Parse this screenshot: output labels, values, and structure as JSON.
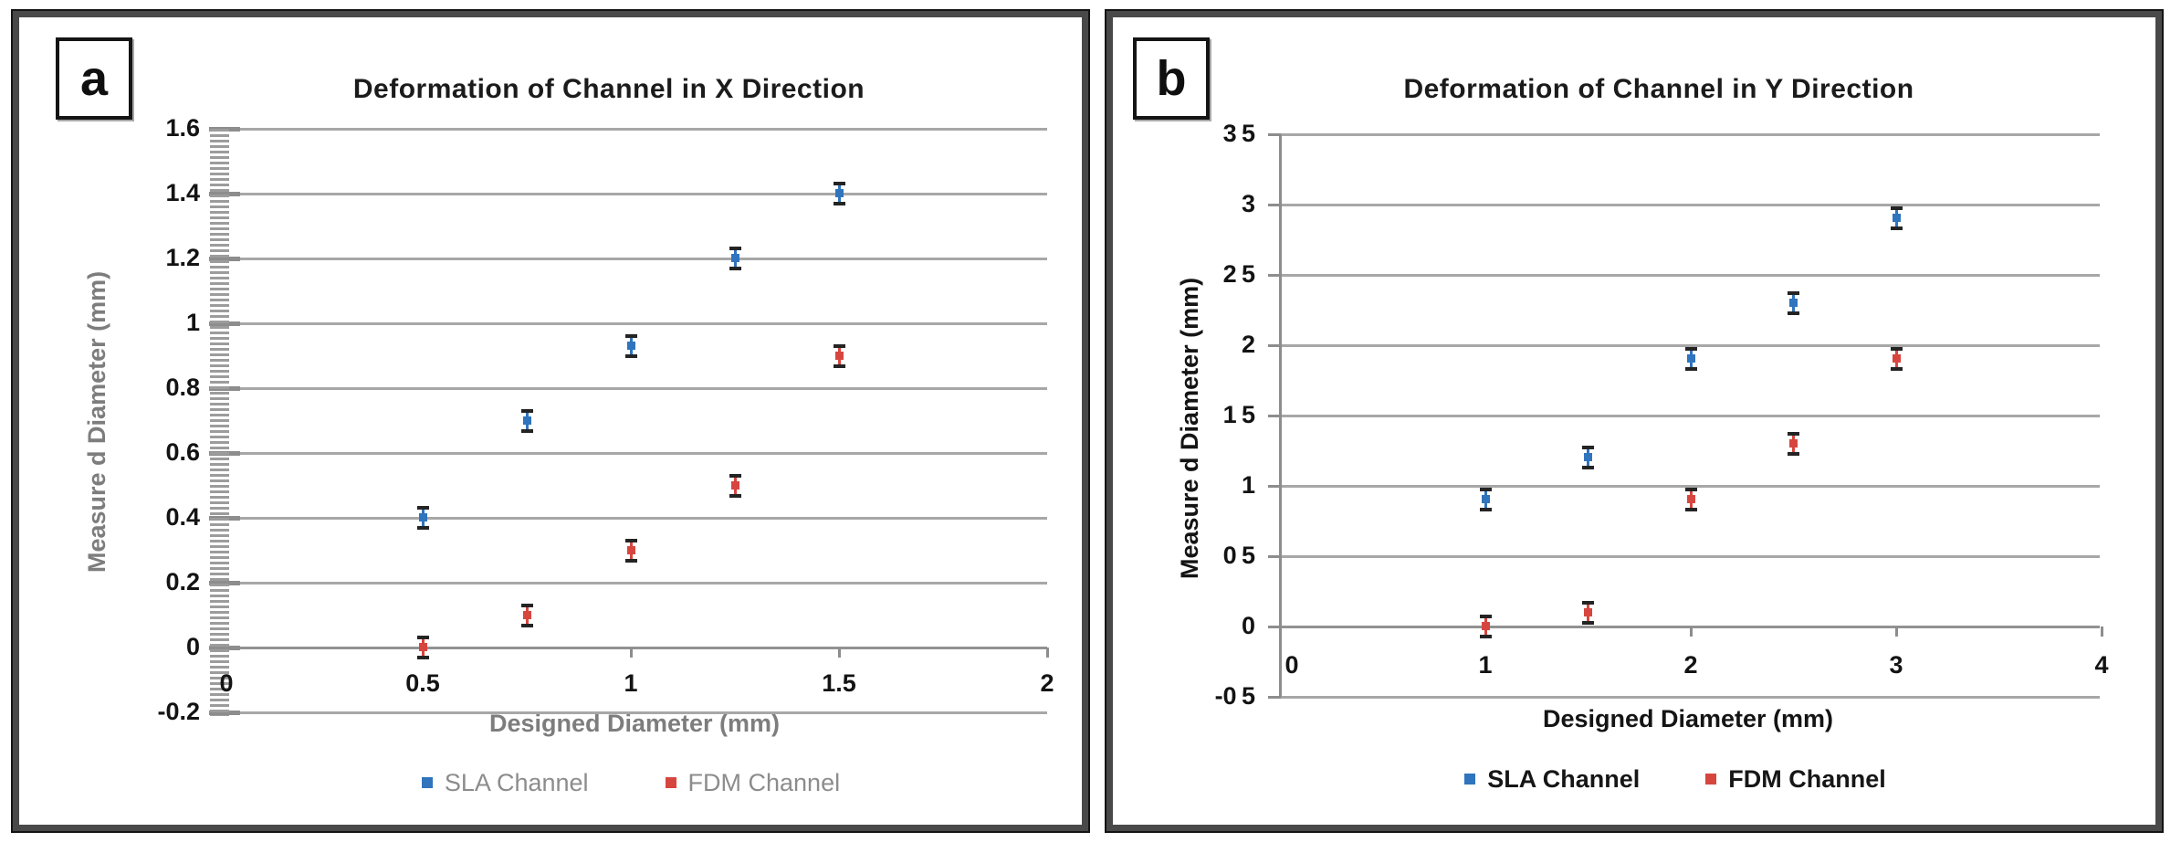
{
  "figure": {
    "background": "#ffffff",
    "panel_count": 2
  },
  "chart_data": [
    {
      "type": "scatter",
      "panel_label": "a",
      "title": "Deformation of Channel in X Direction",
      "xlabel": "Designed Diameter (mm)",
      "ylabel": "Measure d Diameter (mm)",
      "xlim": [
        0,
        2
      ],
      "ylim": [
        -0.2,
        1.6
      ],
      "x_tick_values": [
        0,
        0.5,
        1,
        1.5,
        2
      ],
      "x_tick_labels": [
        "0",
        "0.5",
        "1",
        "1.5",
        "2"
      ],
      "y_tick_values": [
        1.6,
        1.4,
        1.2,
        1.0,
        0.8,
        0.6,
        0.4,
        0.2,
        0,
        -0.2
      ],
      "y_tick_labels": [
        "1.6",
        "1.4",
        "1.2",
        "1",
        "0.8",
        "0.6",
        "0.4",
        "0.2",
        "0",
        "-0.2"
      ],
      "grid": "horizontal",
      "gridline_color": "#a7a7a7",
      "legend_position": "bottom",
      "y_axis_style": "dense-minor-ticks",
      "series": [
        {
          "name": "SLA Channel",
          "color": "#2F74BD",
          "marker": "square-with-error-caps",
          "x": [
            0.5,
            0.75,
            1.0,
            1.25,
            1.5
          ],
          "y": [
            0.4,
            0.7,
            0.93,
            1.2,
            1.4
          ],
          "y_error": 0.03
        },
        {
          "name": "FDM Channel",
          "color": "#D6463F",
          "marker": "square-with-error-caps",
          "x": [
            0.5,
            0.75,
            1.0,
            1.25,
            1.5
          ],
          "y": [
            0.0,
            0.1,
            0.3,
            0.5,
            0.9
          ],
          "y_error": 0.03
        }
      ]
    },
    {
      "type": "scatter",
      "panel_label": "b",
      "title": "Deformation of Channel in Y Direction",
      "xlabel": "Designed Diameter (mm)",
      "ylabel": "Measure d Diameter (mm)",
      "xlim": [
        0,
        4
      ],
      "ylim": [
        -0.5,
        3.5
      ],
      "x_tick_values": [
        0,
        1,
        2,
        3,
        4
      ],
      "x_tick_labels": [
        "0",
        "1",
        "2",
        "3",
        "4"
      ],
      "y_tick_values": [
        3.5,
        3.0,
        2.5,
        2.0,
        1.5,
        1.0,
        0.5,
        0,
        -0.5
      ],
      "y_tick_labels": [
        "3 5",
        "3",
        "2 5",
        "2",
        "1 5",
        "1",
        "0 5",
        "0",
        "-0 5"
      ],
      "grid": "horizontal",
      "gridline_color": "#a7a7a7",
      "legend_position": "bottom",
      "y_axis_style": "solid-line",
      "series": [
        {
          "name": "SLA Channel",
          "color": "#2F74BD",
          "marker": "square-with-error-caps",
          "x": [
            1.0,
            1.5,
            2.0,
            2.5,
            3.0
          ],
          "y": [
            0.9,
            1.2,
            1.9,
            2.3,
            2.9
          ],
          "y_error": 0.03
        },
        {
          "name": "FDM Channel",
          "color": "#D6463F",
          "marker": "square-with-error-caps",
          "x": [
            1.0,
            1.5,
            2.0,
            2.5,
            3.0
          ],
          "y": [
            0.0,
            0.1,
            0.9,
            1.3,
            1.9
          ],
          "y_error": 0.03
        }
      ]
    }
  ]
}
